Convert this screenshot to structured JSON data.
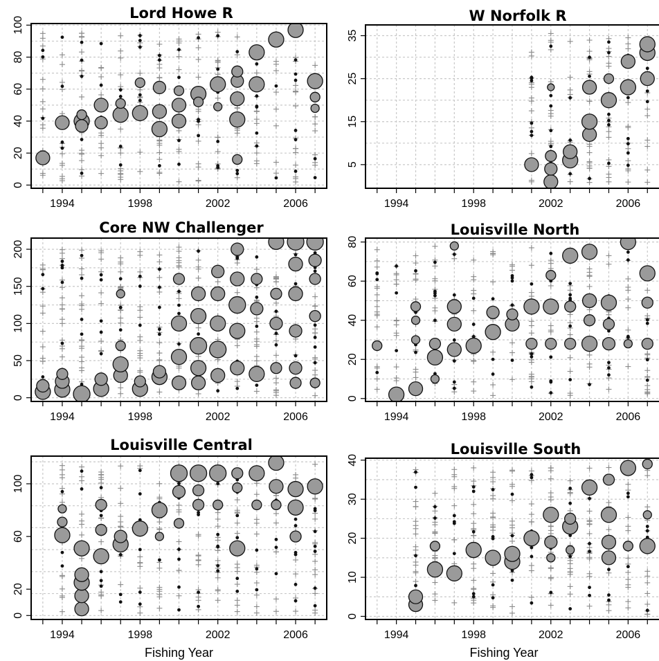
{
  "chart_data": [
    {
      "type": "scatter",
      "title": "Lord Howe R",
      "xlabel": "",
      "xticks": [
        1994,
        1998,
        2002,
        2006
      ],
      "yticks": [
        0,
        20,
        40,
        60,
        80,
        100
      ],
      "xlim": [
        1992.4,
        2007.6
      ],
      "ylim": [
        -2,
        101
      ],
      "grid": true,
      "bubbles": [
        {
          "year": 1993,
          "y": 17,
          "size": 10
        },
        {
          "year": 1994,
          "y": 39,
          "size": 10
        },
        {
          "year": 1995,
          "y": 40,
          "size": 11
        },
        {
          "year": 1995,
          "y": 37,
          "size": 9
        },
        {
          "year": 1995,
          "y": 44,
          "size": 7
        },
        {
          "year": 1996,
          "y": 50,
          "size": 10
        },
        {
          "year": 1996,
          "y": 39,
          "size": 9
        },
        {
          "year": 1997,
          "y": 44,
          "size": 11
        },
        {
          "year": 1997,
          "y": 51,
          "size": 7
        },
        {
          "year": 1998,
          "y": 45,
          "size": 11
        },
        {
          "year": 1998,
          "y": 64,
          "size": 7
        },
        {
          "year": 1999,
          "y": 35,
          "size": 11
        },
        {
          "year": 1999,
          "y": 46,
          "size": 10
        },
        {
          "year": 1999,
          "y": 61,
          "size": 9
        },
        {
          "year": 2000,
          "y": 40,
          "size": 10
        },
        {
          "year": 2000,
          "y": 50,
          "size": 10
        },
        {
          "year": 2000,
          "y": 59,
          "size": 7
        },
        {
          "year": 2001,
          "y": 57,
          "size": 11
        },
        {
          "year": 2001,
          "y": 52,
          "size": 7
        },
        {
          "year": 2002,
          "y": 63,
          "size": 11
        },
        {
          "year": 2002,
          "y": 49,
          "size": 6
        },
        {
          "year": 2003,
          "y": 41,
          "size": 11
        },
        {
          "year": 2003,
          "y": 54,
          "size": 10
        },
        {
          "year": 2003,
          "y": 65,
          "size": 9
        },
        {
          "year": 2003,
          "y": 71,
          "size": 8
        },
        {
          "year": 2003,
          "y": 16,
          "size": 7
        },
        {
          "year": 2004,
          "y": 63,
          "size": 11
        },
        {
          "year": 2004,
          "y": 83,
          "size": 11
        },
        {
          "year": 2005,
          "y": 91,
          "size": 11
        },
        {
          "year": 2006,
          "y": 97,
          "size": 11
        },
        {
          "year": 2007,
          "y": 65,
          "size": 11
        },
        {
          "year": 2007,
          "y": 55,
          "size": 7
        },
        {
          "year": 2007,
          "y": 48,
          "size": 6
        }
      ]
    },
    {
      "type": "scatter",
      "title": "W Norfolk R",
      "xlabel": "",
      "xticks": [
        1994,
        1998,
        2002,
        2006
      ],
      "yticks": [
        5,
        15,
        25,
        35
      ],
      "xlim": [
        1992.4,
        2007.6
      ],
      "ylim": [
        -0.5,
        37.5
      ],
      "grid": true,
      "bubbles": [
        {
          "year": 2001,
          "y": 5,
          "size": 10
        },
        {
          "year": 2002,
          "y": 1,
          "size": 10
        },
        {
          "year": 2002,
          "y": 4,
          "size": 9
        },
        {
          "year": 2002,
          "y": 7,
          "size": 8
        },
        {
          "year": 2002,
          "y": 23,
          "size": 5
        },
        {
          "year": 2003,
          "y": 6,
          "size": 11
        },
        {
          "year": 2003,
          "y": 8,
          "size": 10
        },
        {
          "year": 2004,
          "y": 12,
          "size": 10
        },
        {
          "year": 2004,
          "y": 15,
          "size": 11
        },
        {
          "year": 2004,
          "y": 23,
          "size": 10
        },
        {
          "year": 2005,
          "y": 20,
          "size": 11
        },
        {
          "year": 2005,
          "y": 25,
          "size": 7
        },
        {
          "year": 2006,
          "y": 23,
          "size": 11
        },
        {
          "year": 2006,
          "y": 29,
          "size": 10
        },
        {
          "year": 2007,
          "y": 25,
          "size": 10
        },
        {
          "year": 2007,
          "y": 31,
          "size": 11
        },
        {
          "year": 2007,
          "y": 33,
          "size": 11
        }
      ]
    },
    {
      "type": "scatter",
      "title": "Core NW Challenger",
      "xlabel": "",
      "xticks": [
        1994,
        1998,
        2002,
        2006
      ],
      "yticks": [
        0,
        50,
        100,
        150,
        200
      ],
      "xlim": [
        1992.4,
        2007.6
      ],
      "ylim": [
        -5,
        215
      ],
      "grid": true,
      "bubbles": [
        {
          "year": 1993,
          "y": 8,
          "size": 11
        },
        {
          "year": 1993,
          "y": 16,
          "size": 9
        },
        {
          "year": 1994,
          "y": 11,
          "size": 11
        },
        {
          "year": 1994,
          "y": 22,
          "size": 10
        },
        {
          "year": 1994,
          "y": 32,
          "size": 8
        },
        {
          "year": 1995,
          "y": 5,
          "size": 12
        },
        {
          "year": 1996,
          "y": 12,
          "size": 11
        },
        {
          "year": 1996,
          "y": 25,
          "size": 9
        },
        {
          "year": 1997,
          "y": 30,
          "size": 10
        },
        {
          "year": 1997,
          "y": 45,
          "size": 11
        },
        {
          "year": 1997,
          "y": 70,
          "size": 7
        },
        {
          "year": 1997,
          "y": 140,
          "size": 6
        },
        {
          "year": 1998,
          "y": 12,
          "size": 11
        },
        {
          "year": 1998,
          "y": 22,
          "size": 8
        },
        {
          "year": 1999,
          "y": 28,
          "size": 11
        },
        {
          "year": 1999,
          "y": 35,
          "size": 9
        },
        {
          "year": 2000,
          "y": 55,
          "size": 11
        },
        {
          "year": 2000,
          "y": 100,
          "size": 11
        },
        {
          "year": 2000,
          "y": 20,
          "size": 10
        },
        {
          "year": 2000,
          "y": 160,
          "size": 8
        },
        {
          "year": 2001,
          "y": 70,
          "size": 12
        },
        {
          "year": 2001,
          "y": 110,
          "size": 11
        },
        {
          "year": 2001,
          "y": 40,
          "size": 11
        },
        {
          "year": 2001,
          "y": 140,
          "size": 10
        },
        {
          "year": 2001,
          "y": 20,
          "size": 10
        },
        {
          "year": 2002,
          "y": 65,
          "size": 12
        },
        {
          "year": 2002,
          "y": 100,
          "size": 11
        },
        {
          "year": 2002,
          "y": 140,
          "size": 10
        },
        {
          "year": 2002,
          "y": 170,
          "size": 9
        },
        {
          "year": 2002,
          "y": 30,
          "size": 10
        },
        {
          "year": 2003,
          "y": 125,
          "size": 12
        },
        {
          "year": 2003,
          "y": 90,
          "size": 11
        },
        {
          "year": 2003,
          "y": 160,
          "size": 10
        },
        {
          "year": 2003,
          "y": 200,
          "size": 9
        },
        {
          "year": 2003,
          "y": 40,
          "size": 10
        },
        {
          "year": 2004,
          "y": 32,
          "size": 11
        },
        {
          "year": 2004,
          "y": 120,
          "size": 9
        },
        {
          "year": 2004,
          "y": 160,
          "size": 8
        },
        {
          "year": 2005,
          "y": 210,
          "size": 11
        },
        {
          "year": 2005,
          "y": 100,
          "size": 9
        },
        {
          "year": 2005,
          "y": 140,
          "size": 8
        },
        {
          "year": 2005,
          "y": 40,
          "size": 8
        },
        {
          "year": 2006,
          "y": 210,
          "size": 12
        },
        {
          "year": 2006,
          "y": 180,
          "size": 10
        },
        {
          "year": 2006,
          "y": 140,
          "size": 10
        },
        {
          "year": 2006,
          "y": 90,
          "size": 9
        },
        {
          "year": 2006,
          "y": 40,
          "size": 9
        },
        {
          "year": 2006,
          "y": 20,
          "size": 8
        },
        {
          "year": 2007,
          "y": 210,
          "size": 12
        },
        {
          "year": 2007,
          "y": 185,
          "size": 9
        },
        {
          "year": 2007,
          "y": 160,
          "size": 8
        },
        {
          "year": 2007,
          "y": 110,
          "size": 8
        },
        {
          "year": 2007,
          "y": 20,
          "size": 7
        }
      ]
    },
    {
      "type": "scatter",
      "title": "Louisville North",
      "xlabel": "",
      "xticks": [
        1994,
        1998,
        2002,
        2006
      ],
      "yticks": [
        0,
        20,
        40,
        60,
        80
      ],
      "xlim": [
        1992.4,
        2007.6
      ],
      "ylim": [
        -1.5,
        82
      ],
      "grid": true,
      "bubbles": [
        {
          "year": 1993,
          "y": 27,
          "size": 7
        },
        {
          "year": 1994,
          "y": 2,
          "size": 11
        },
        {
          "year": 1995,
          "y": 5,
          "size": 10
        },
        {
          "year": 1995,
          "y": 40,
          "size": 6
        },
        {
          "year": 1995,
          "y": 47,
          "size": 7
        },
        {
          "year": 1995,
          "y": 30,
          "size": 6
        },
        {
          "year": 1996,
          "y": 21,
          "size": 11
        },
        {
          "year": 1996,
          "y": 28,
          "size": 8
        },
        {
          "year": 1996,
          "y": 10,
          "size": 6
        },
        {
          "year": 1997,
          "y": 25,
          "size": 10
        },
        {
          "year": 1997,
          "y": 38,
          "size": 10
        },
        {
          "year": 1997,
          "y": 47,
          "size": 10
        },
        {
          "year": 1997,
          "y": 78,
          "size": 6
        },
        {
          "year": 1998,
          "y": 27,
          "size": 11
        },
        {
          "year": 1999,
          "y": 34,
          "size": 11
        },
        {
          "year": 1999,
          "y": 44,
          "size": 9
        },
        {
          "year": 2000,
          "y": 38,
          "size": 10
        },
        {
          "year": 2000,
          "y": 43,
          "size": 8
        },
        {
          "year": 2001,
          "y": 47,
          "size": 11
        },
        {
          "year": 2001,
          "y": 28,
          "size": 8
        },
        {
          "year": 2002,
          "y": 47,
          "size": 11
        },
        {
          "year": 2002,
          "y": 28,
          "size": 8
        },
        {
          "year": 2002,
          "y": 63,
          "size": 7
        },
        {
          "year": 2003,
          "y": 73,
          "size": 11
        },
        {
          "year": 2003,
          "y": 28,
          "size": 8
        },
        {
          "year": 2003,
          "y": 47,
          "size": 8
        },
        {
          "year": 2004,
          "y": 28,
          "size": 11
        },
        {
          "year": 2004,
          "y": 50,
          "size": 10
        },
        {
          "year": 2004,
          "y": 75,
          "size": 11
        },
        {
          "year": 2004,
          "y": 40,
          "size": 8
        },
        {
          "year": 2005,
          "y": 28,
          "size": 9
        },
        {
          "year": 2005,
          "y": 49,
          "size": 11
        },
        {
          "year": 2005,
          "y": 38,
          "size": 8
        },
        {
          "year": 2006,
          "y": 80,
          "size": 11
        },
        {
          "year": 2006,
          "y": 28,
          "size": 6
        },
        {
          "year": 2007,
          "y": 64,
          "size": 11
        },
        {
          "year": 2007,
          "y": 49,
          "size": 8
        },
        {
          "year": 2007,
          "y": 28,
          "size": 8
        }
      ]
    },
    {
      "type": "scatter",
      "title": "Louisville Central",
      "xlabel": "Fishing Year",
      "xticks": [
        1994,
        1998,
        2002,
        2006
      ],
      "yticks": [
        0,
        20,
        60,
        100
      ],
      "xlim": [
        1992.4,
        2007.6
      ],
      "ylim": [
        -3,
        121
      ],
      "grid": true,
      "bubbles": [
        {
          "year": 1994,
          "y": 61,
          "size": 11
        },
        {
          "year": 1994,
          "y": 71,
          "size": 7
        },
        {
          "year": 1994,
          "y": 81,
          "size": 6
        },
        {
          "year": 1995,
          "y": 5,
          "size": 10
        },
        {
          "year": 1995,
          "y": 15,
          "size": 10
        },
        {
          "year": 1995,
          "y": 25,
          "size": 11
        },
        {
          "year": 1995,
          "y": 31,
          "size": 10
        },
        {
          "year": 1995,
          "y": 51,
          "size": 11
        },
        {
          "year": 1996,
          "y": 45,
          "size": 11
        },
        {
          "year": 1996,
          "y": 65,
          "size": 8
        },
        {
          "year": 1996,
          "y": 84,
          "size": 8
        },
        {
          "year": 1997,
          "y": 54,
          "size": 11
        },
        {
          "year": 1997,
          "y": 60,
          "size": 9
        },
        {
          "year": 1998,
          "y": 66,
          "size": 11
        },
        {
          "year": 1999,
          "y": 80,
          "size": 11
        },
        {
          "year": 1999,
          "y": 60,
          "size": 6
        },
        {
          "year": 2000,
          "y": 108,
          "size": 12
        },
        {
          "year": 2000,
          "y": 94,
          "size": 9
        },
        {
          "year": 2000,
          "y": 70,
          "size": 7
        },
        {
          "year": 2001,
          "y": 108,
          "size": 12
        },
        {
          "year": 2001,
          "y": 95,
          "size": 8
        },
        {
          "year": 2001,
          "y": 84,
          "size": 8
        },
        {
          "year": 2002,
          "y": 108,
          "size": 12
        },
        {
          "year": 2002,
          "y": 84,
          "size": 7
        },
        {
          "year": 2003,
          "y": 108,
          "size": 8
        },
        {
          "year": 2003,
          "y": 97,
          "size": 7
        },
        {
          "year": 2003,
          "y": 51,
          "size": 11
        },
        {
          "year": 2004,
          "y": 108,
          "size": 11
        },
        {
          "year": 2004,
          "y": 84,
          "size": 7
        },
        {
          "year": 2005,
          "y": 116,
          "size": 11
        },
        {
          "year": 2005,
          "y": 98,
          "size": 10
        },
        {
          "year": 2005,
          "y": 84,
          "size": 7
        },
        {
          "year": 2006,
          "y": 96,
          "size": 11
        },
        {
          "year": 2006,
          "y": 82,
          "size": 11
        },
        {
          "year": 2006,
          "y": 60,
          "size": 8
        },
        {
          "year": 2007,
          "y": 98,
          "size": 11
        }
      ]
    },
    {
      "type": "scatter",
      "title": "Louisville South",
      "xlabel": "Fishing Year",
      "xticks": [
        1994,
        1998,
        2002,
        2006
      ],
      "yticks": [
        0,
        10,
        20,
        30,
        40
      ],
      "xlim": [
        1992.4,
        2007.6
      ],
      "ylim": [
        -0.8,
        40.5
      ],
      "grid": true,
      "bubbles": [
        {
          "year": 1995,
          "y": 3,
          "size": 10
        },
        {
          "year": 1995,
          "y": 5,
          "size": 10
        },
        {
          "year": 1996,
          "y": 12,
          "size": 11
        },
        {
          "year": 1996,
          "y": 18,
          "size": 7
        },
        {
          "year": 1997,
          "y": 11,
          "size": 11
        },
        {
          "year": 1998,
          "y": 17,
          "size": 11
        },
        {
          "year": 1999,
          "y": 15,
          "size": 11
        },
        {
          "year": 2000,
          "y": 14,
          "size": 11
        },
        {
          "year": 2000,
          "y": 16,
          "size": 11
        },
        {
          "year": 2001,
          "y": 20,
          "size": 11
        },
        {
          "year": 2002,
          "y": 26,
          "size": 11
        },
        {
          "year": 2002,
          "y": 19,
          "size": 9
        },
        {
          "year": 2002,
          "y": 15,
          "size": 6
        },
        {
          "year": 2003,
          "y": 23,
          "size": 11
        },
        {
          "year": 2003,
          "y": 25,
          "size": 8
        },
        {
          "year": 2003,
          "y": 17,
          "size": 6
        },
        {
          "year": 2004,
          "y": 33,
          "size": 11
        },
        {
          "year": 2005,
          "y": 26,
          "size": 11
        },
        {
          "year": 2005,
          "y": 19,
          "size": 10
        },
        {
          "year": 2005,
          "y": 15,
          "size": 10
        },
        {
          "year": 2005,
          "y": 35,
          "size": 8
        },
        {
          "year": 2006,
          "y": 38,
          "size": 11
        },
        {
          "year": 2006,
          "y": 18,
          "size": 7
        },
        {
          "year": 2007,
          "y": 18,
          "size": 11
        },
        {
          "year": 2007,
          "y": 39,
          "size": 7
        },
        {
          "year": 2007,
          "y": 26,
          "size": 6
        }
      ]
    }
  ]
}
